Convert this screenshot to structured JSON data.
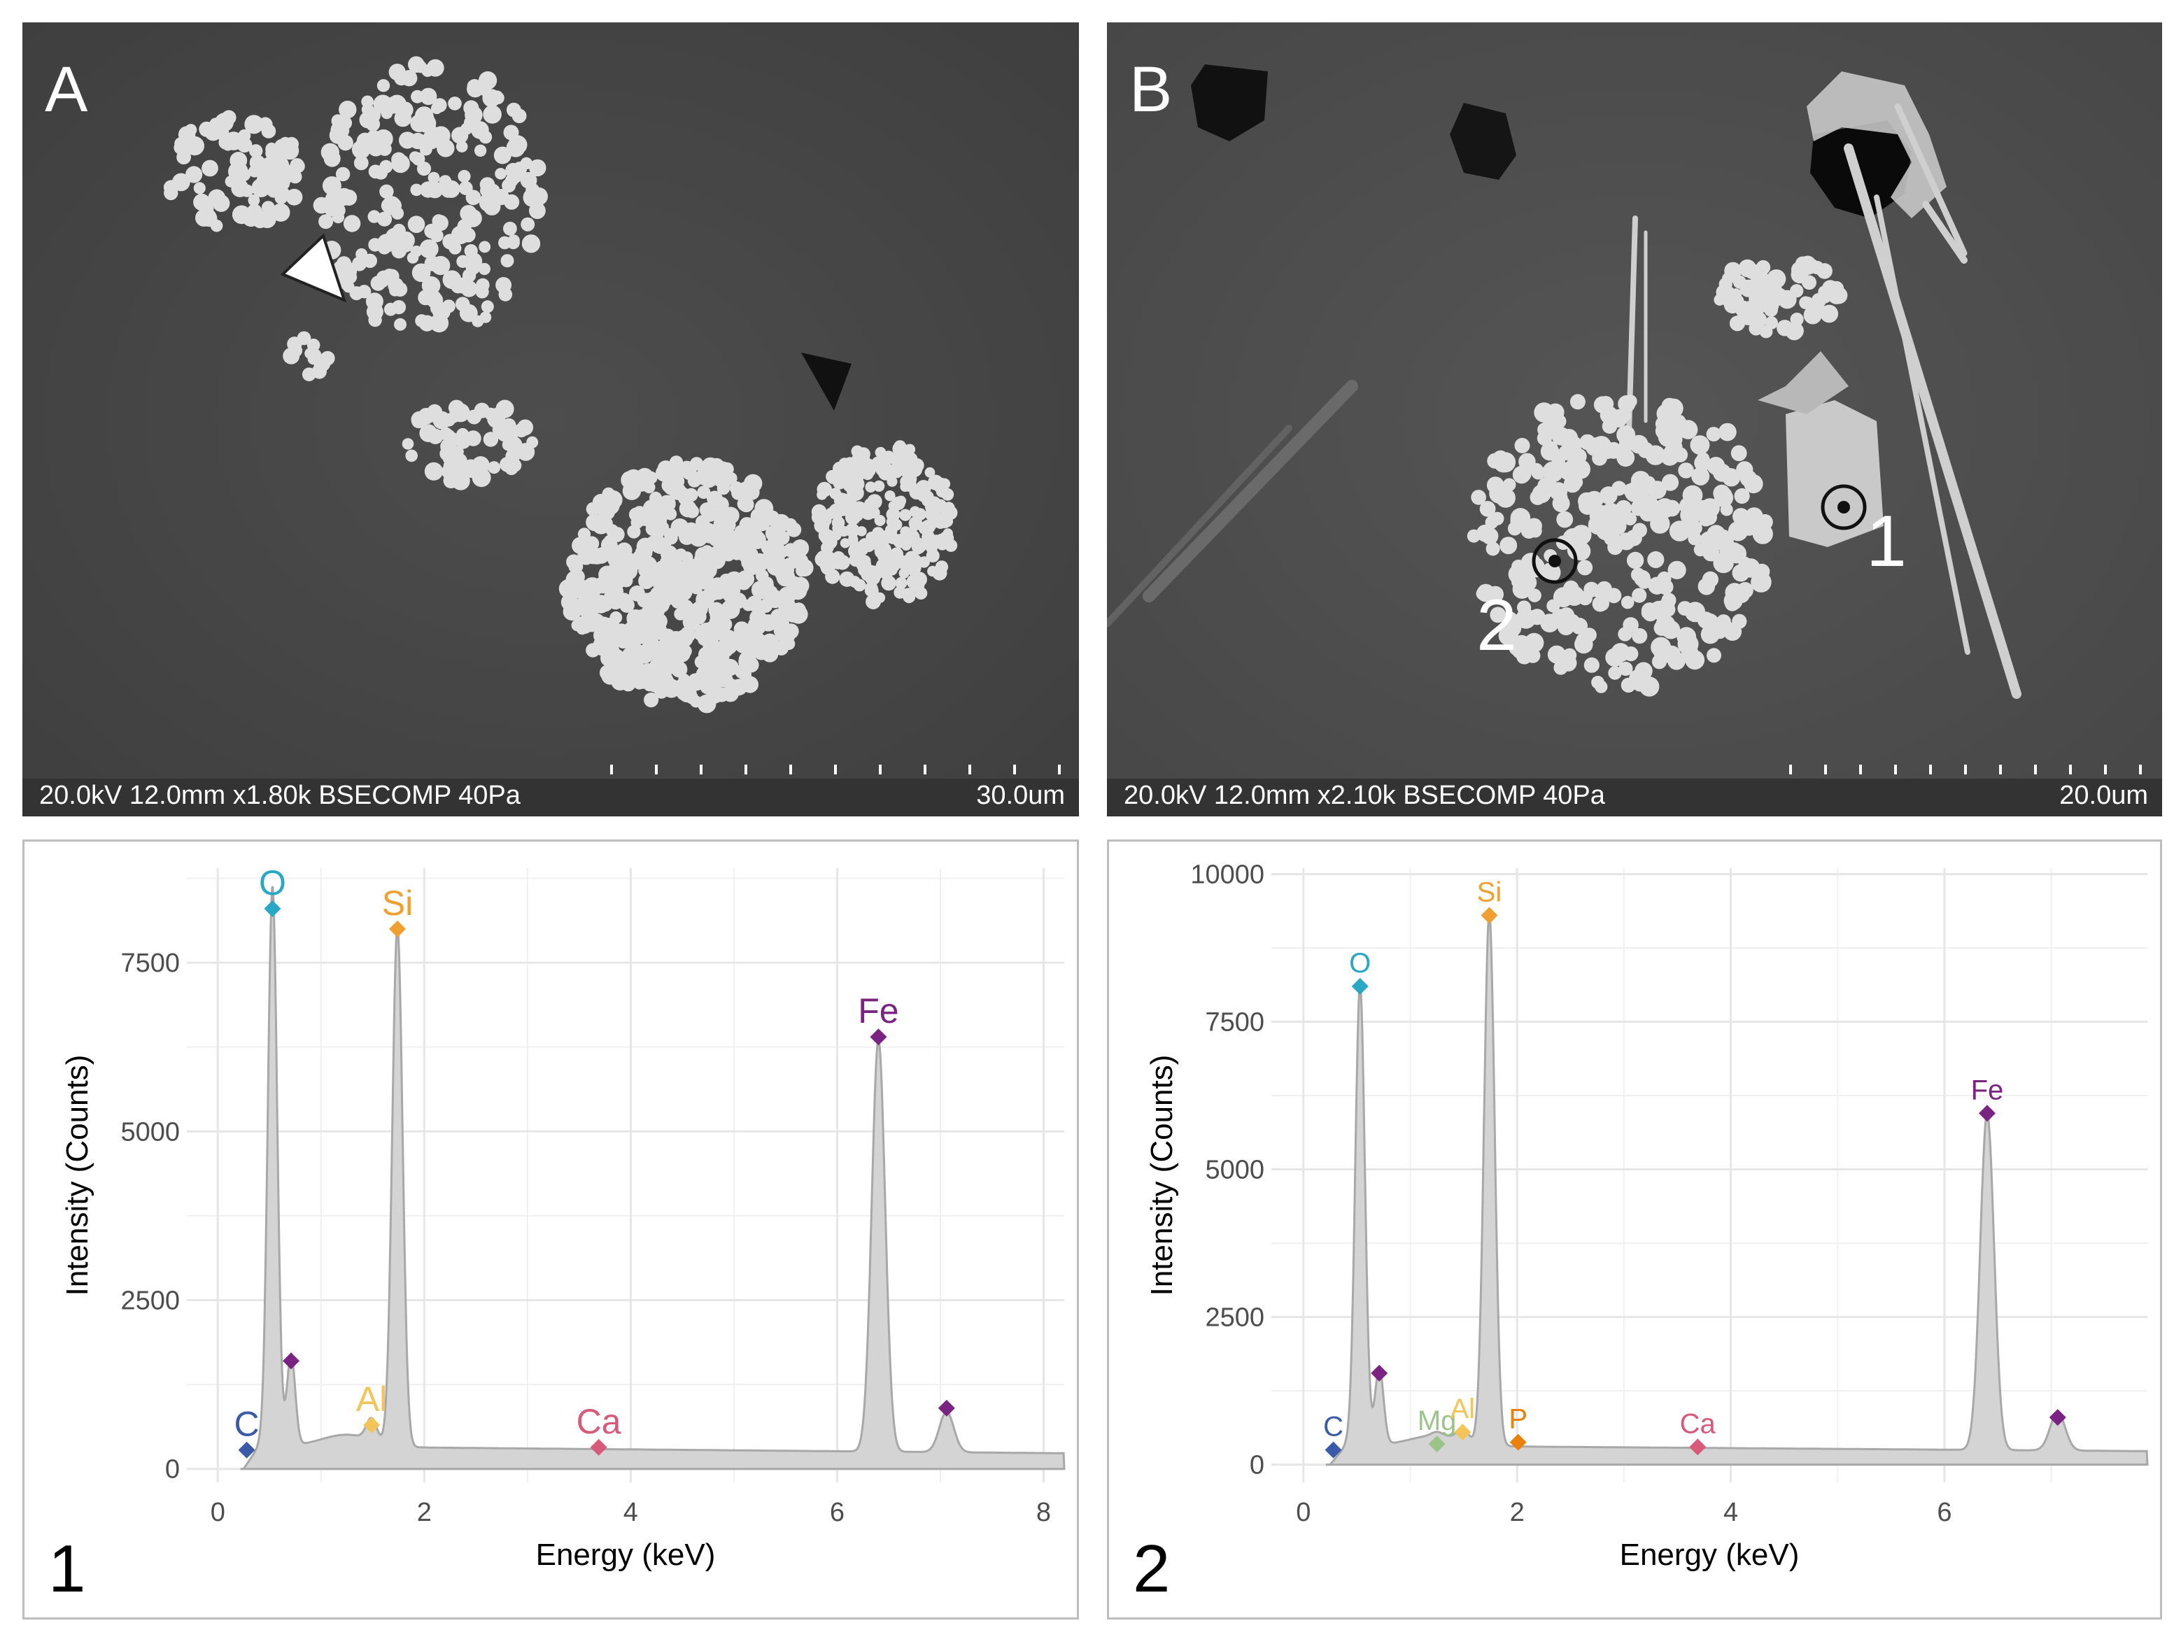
{
  "panels": {
    "A": {
      "letter": "A",
      "sem_params": "20.0kV 12.0mm x1.80k BSECOMP 40Pa",
      "scale_label": "30.0um"
    },
    "B": {
      "letter": "B",
      "sem_params": "20.0kV 12.0mm x2.10k BSECOMP 40Pa",
      "scale_label": "20.0um",
      "point_labels": [
        "1",
        "2"
      ]
    }
  },
  "colors": {
    "C": "#3b5aa8",
    "O": "#28a8c4",
    "Si": "#f0a030",
    "Al": "#f2c45a",
    "Ca": "#d85a7a",
    "Fe": "#7a2382",
    "Mg": "#9cc48a",
    "P": "#e8820c",
    "spectrum_fill": "#d4d4d4",
    "spectrum_line": "#a8a8a8"
  },
  "chart_data": [
    {
      "type": "area",
      "panel_label": "1",
      "xlabel": "Energy (keV)",
      "ylabel": "Intensity (Counts)",
      "xlim": [
        -0.3,
        8.2
      ],
      "ylim": [
        -200,
        8900
      ],
      "xticks": [
        0,
        2,
        4,
        6,
        8
      ],
      "yticks": [
        0,
        2500,
        5000,
        7500
      ],
      "grid": true,
      "peaks": [
        {
          "x": 0.53,
          "y": 8300,
          "w": 0.045
        },
        {
          "x": 0.71,
          "y": 1350,
          "w": 0.04
        },
        {
          "x": 1.49,
          "y": 320,
          "w": 0.05
        },
        {
          "x": 1.74,
          "y": 7700,
          "w": 0.05
        },
        {
          "x": 6.4,
          "y": 6100,
          "w": 0.065
        },
        {
          "x": 7.06,
          "y": 600,
          "w": 0.07
        }
      ],
      "background": {
        "start": 0.25,
        "level": 340
      },
      "markers": [
        {
          "element": "C",
          "x": 0.28,
          "y": 280,
          "label": "C"
        },
        {
          "element": "O",
          "x": 0.53,
          "y": 8300,
          "label": "O"
        },
        {
          "element": "Fe",
          "x": 0.71,
          "y": 1600,
          "label": ""
        },
        {
          "element": "Al",
          "x": 1.49,
          "y": 650,
          "label": "Al"
        },
        {
          "element": "Si",
          "x": 1.74,
          "y": 8000,
          "label": "Si"
        },
        {
          "element": "Ca",
          "x": 3.69,
          "y": 320,
          "label": "Ca"
        },
        {
          "element": "Fe",
          "x": 6.4,
          "y": 6400,
          "label": "Fe"
        },
        {
          "element": "Fe",
          "x": 7.06,
          "y": 900,
          "label": ""
        }
      ]
    },
    {
      "type": "area",
      "panel_label": "2",
      "xlabel": "Energy (keV)",
      "ylabel": "Intensity (Counts)",
      "xlim": [
        -0.3,
        7.9
      ],
      "ylim": [
        -300,
        10100
      ],
      "xticks": [
        0,
        2,
        4,
        6
      ],
      "yticks": [
        0,
        2500,
        5000,
        7500,
        10000
      ],
      "grid": true,
      "peaks": [
        {
          "x": 0.53,
          "y": 7800,
          "w": 0.045
        },
        {
          "x": 0.71,
          "y": 1300,
          "w": 0.04
        },
        {
          "x": 1.25,
          "y": 60,
          "w": 0.05
        },
        {
          "x": 1.49,
          "y": 200,
          "w": 0.05
        },
        {
          "x": 1.74,
          "y": 9000,
          "w": 0.05
        },
        {
          "x": 6.4,
          "y": 5700,
          "w": 0.065
        },
        {
          "x": 7.06,
          "y": 650,
          "w": 0.07
        }
      ],
      "background": {
        "start": 0.25,
        "level": 330
      },
      "markers": [
        {
          "element": "C",
          "x": 0.28,
          "y": 250,
          "label": "C"
        },
        {
          "element": "O",
          "x": 0.53,
          "y": 8100,
          "label": "O"
        },
        {
          "element": "Fe",
          "x": 0.71,
          "y": 1550,
          "label": ""
        },
        {
          "element": "Mg",
          "x": 1.25,
          "y": 350,
          "label": "Mg"
        },
        {
          "element": "Al",
          "x": 1.49,
          "y": 550,
          "label": "Al"
        },
        {
          "element": "Si",
          "x": 1.74,
          "y": 9300,
          "label": "Si"
        },
        {
          "element": "P",
          "x": 2.01,
          "y": 380,
          "label": "P"
        },
        {
          "element": "Ca",
          "x": 3.69,
          "y": 300,
          "label": "Ca"
        },
        {
          "element": "Fe",
          "x": 6.4,
          "y": 5950,
          "label": "Fe"
        },
        {
          "element": "Fe",
          "x": 7.06,
          "y": 800,
          "label": ""
        }
      ]
    }
  ]
}
